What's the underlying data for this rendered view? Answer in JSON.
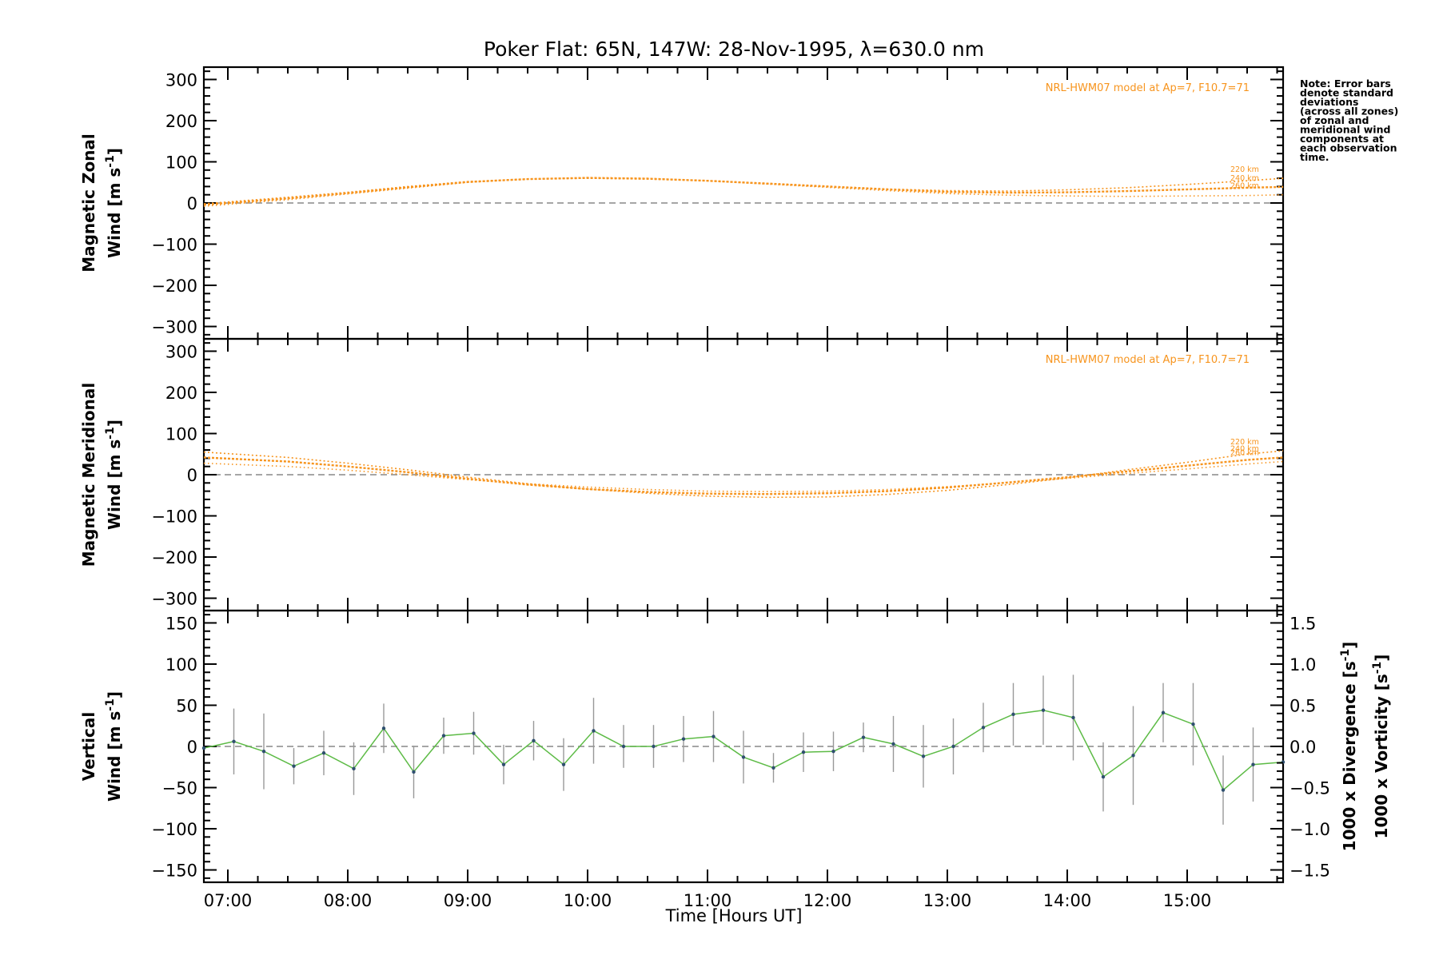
{
  "chart_data": {
    "type": "line",
    "title": "Poker Flat: 65N, 147W: 28-Nov-1995, λ=630.0 nm",
    "xlabel": "Time [Hours UT]",
    "x_range_hours": [
      6.8,
      15.8
    ],
    "x_ticks": [
      "07:00",
      "08:00",
      "09:00",
      "10:00",
      "11:00",
      "12:00",
      "13:00",
      "14:00",
      "15:00"
    ],
    "x_tick_hours": [
      7,
      8,
      9,
      10,
      11,
      12,
      13,
      14,
      15
    ],
    "note": [
      "Note: Error bars",
      "denote standard",
      "deviations",
      "(across all zones)",
      "of zonal and",
      "meridional wind",
      "components at",
      "each observation",
      "time."
    ],
    "model_label": "NRL-HWM07 model at Ap=7, F10.7=71",
    "altitude_labels": [
      "220 km",
      "240 km",
      "260 km"
    ],
    "panels": [
      {
        "name": "zonal",
        "ylabel_line1": "Magnetic Zonal",
        "ylabel_line2": "Wind [m s",
        "ylabel_sup": "-1",
        "ylim": [
          -330,
          330
        ],
        "yticks": [
          300,
          200,
          100,
          0,
          -100,
          -200,
          -300
        ],
        "model_label": "NRL-HWM07 model at Ap=7, F10.7=71",
        "model_series": [
          {
            "name": "220 km",
            "x": [
              6.8,
              7.5,
              8.0,
              8.5,
              9.0,
              9.5,
              10.0,
              10.5,
              11.0,
              11.5,
              12.0,
              12.5,
              13.0,
              13.5,
              14.0,
              14.5,
              15.0,
              15.5,
              15.8
            ],
            "y": [
              -2,
              14,
              26,
              40,
              52,
              58,
              60,
              58,
              54,
              48,
              41,
              34,
              30,
              29,
              32,
              37,
              45,
              54,
              60
            ]
          },
          {
            "name": "240 km",
            "x": [
              6.8,
              7.5,
              8.0,
              8.5,
              9.0,
              9.5,
              10.0,
              10.5,
              11.0,
              11.5,
              12.0,
              12.5,
              13.0,
              13.5,
              14.0,
              14.5,
              15.0,
              15.5,
              15.8
            ],
            "y": [
              -4,
              11,
              24,
              38,
              51,
              58,
              61,
              59,
              54,
              47,
              40,
              33,
              27,
              25,
              26,
              29,
              33,
              37,
              39
            ]
          },
          {
            "name": "260 km",
            "x": [
              6.8,
              7.5,
              8.0,
              8.5,
              9.0,
              9.5,
              10.0,
              10.5,
              11.0,
              11.5,
              12.0,
              12.5,
              13.0,
              13.5,
              14.0,
              14.5,
              15.0,
              15.5,
              15.8
            ],
            "y": [
              -8,
              8,
              22,
              36,
              50,
              58,
              62,
              60,
              54,
              46,
              38,
              30,
              23,
              19,
              17,
              16,
              17,
              18,
              20
            ]
          }
        ]
      },
      {
        "name": "meridional",
        "ylabel_line1": "Magnetic Meridional",
        "ylabel_line2": "Wind [m s",
        "ylabel_sup": "-1",
        "ylim": [
          -330,
          330
        ],
        "yticks": [
          300,
          200,
          100,
          0,
          -100,
          -200,
          -300
        ],
        "model_label": "NRL-HWM07 model at Ap=7, F10.7=71",
        "model_series": [
          {
            "name": "220 km",
            "x": [
              6.8,
              7.5,
              8.0,
              8.5,
              9.0,
              9.5,
              10.0,
              10.5,
              11.0,
              11.5,
              12.0,
              12.5,
              13.0,
              13.5,
              14.0,
              14.5,
              15.0,
              15.5,
              15.8
            ],
            "y": [
              55,
              42,
              28,
              12,
              -6,
              -22,
              -35,
              -45,
              -52,
              -55,
              -54,
              -48,
              -38,
              -24,
              -8,
              12,
              30,
              50,
              58
            ]
          },
          {
            "name": "240 km",
            "x": [
              6.8,
              7.5,
              8.0,
              8.5,
              9.0,
              9.5,
              10.0,
              10.5,
              11.0,
              11.5,
              12.0,
              12.5,
              13.0,
              13.5,
              14.0,
              14.5,
              15.0,
              15.5,
              15.8
            ],
            "y": [
              42,
              32,
              20,
              6,
              -10,
              -24,
              -35,
              -42,
              -46,
              -47,
              -45,
              -40,
              -31,
              -19,
              -6,
              8,
              22,
              36,
              42
            ]
          },
          {
            "name": "260 km",
            "x": [
              6.8,
              7.5,
              8.0,
              8.5,
              9.0,
              9.5,
              10.0,
              10.5,
              11.0,
              11.5,
              12.0,
              12.5,
              13.0,
              13.5,
              14.0,
              14.5,
              15.0,
              15.5,
              15.8
            ],
            "y": [
              28,
              20,
              11,
              0,
              -12,
              -22,
              -30,
              -36,
              -40,
              -41,
              -40,
              -36,
              -29,
              -20,
              -9,
              3,
              14,
              26,
              32
            ]
          }
        ]
      },
      {
        "name": "vertical",
        "ylabel_line1": "Vertical",
        "ylabel_line2": "Wind [m s",
        "ylabel_sup": "-1",
        "ylim": [
          -165,
          165
        ],
        "yticks": [
          150,
          100,
          50,
          0,
          -50,
          -100,
          -150
        ],
        "y2lim": [
          -1.65,
          1.65
        ],
        "y2ticks": [
          "1.5",
          "1.0",
          "0.5",
          "0.0",
          "-0.5",
          "-1.0",
          "-1.5"
        ],
        "y2_values": [
          1.5,
          1.0,
          0.5,
          0.0,
          -0.5,
          -1.0,
          -1.5
        ],
        "y2label_divergence": "1000 x Divergence [s",
        "y2label_vorticity": "1000 x Vorticity [s",
        "y2label_sup": "-1",
        "series": [
          {
            "name": "Vertical Wind",
            "x": [
              6.8,
              7.05,
              7.3,
              7.55,
              7.8,
              8.05,
              8.3,
              8.55,
              8.8,
              9.05,
              9.3,
              9.55,
              9.8,
              10.05,
              10.3,
              10.55,
              10.8,
              11.05,
              11.3,
              11.55,
              11.8,
              12.05,
              12.3,
              12.55,
              12.8,
              13.05,
              13.3,
              13.55,
              13.8,
              14.05,
              14.3,
              14.55,
              14.8,
              15.05,
              15.3,
              15.55,
              15.8
            ],
            "y": [
              -2,
              6,
              -6,
              -24,
              -8,
              -27,
              22,
              -31,
              13,
              16,
              -22,
              7,
              -22,
              19,
              0,
              0,
              9,
              12,
              -13,
              -26,
              -7,
              -6,
              11,
              3,
              -12,
              0,
              23,
              39,
              44,
              35,
              -37,
              -11,
              41,
              27,
              -53,
              -22,
              -19
            ],
            "err": [
              0,
              40,
              46,
              22,
              27,
              32,
              30,
              32,
              22,
              26,
              24,
              24,
              32,
              40,
              26,
              26,
              28,
              31,
              32,
              18,
              24,
              24,
              18,
              34,
              38,
              34,
              30,
              38,
              42,
              52,
              42,
              60,
              36,
              50,
              42,
              45,
              0
            ]
          }
        ]
      }
    ],
    "colors": {
      "model": "#f7941d",
      "vertical": "#5dbb46",
      "divergence": "#6ab1e2",
      "vorticity": "#f25e8d",
      "errorbar": "#999999",
      "zero_line": "#888888"
    }
  }
}
